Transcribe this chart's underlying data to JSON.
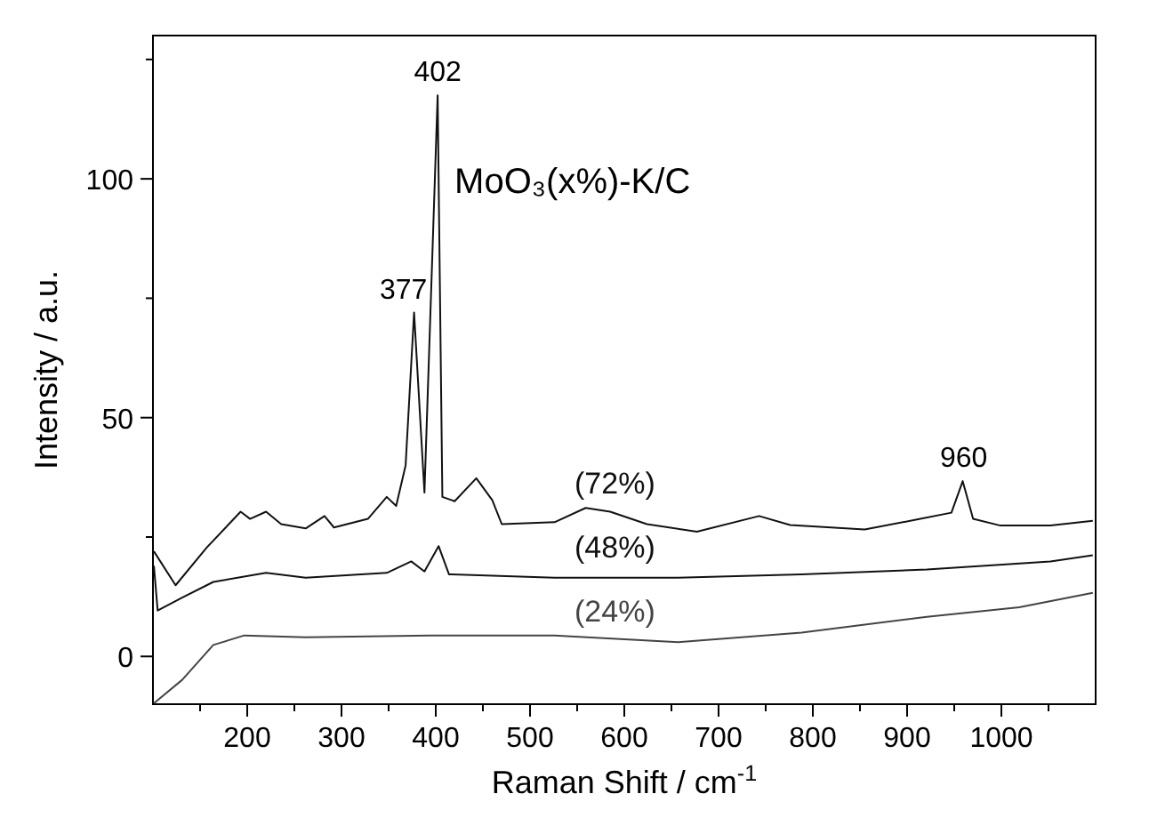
{
  "chart_data": {
    "type": "line",
    "xlabel": "Raman Shift / cm$^{-1}$",
    "ylabel": "Intensity / a.u.",
    "xlim": [
      100,
      1100
    ],
    "ylim": [
      -10,
      130
    ],
    "xticks": [
      {
        "value": 150,
        "label": null
      },
      200,
      {
        "value": 250,
        "label": null
      },
      300,
      {
        "value": 350,
        "label": null
      },
      400,
      {
        "value": 450,
        "label": null
      },
      500,
      {
        "value": 550,
        "label": null
      },
      600,
      {
        "value": 650,
        "label": null
      },
      700,
      {
        "value": 750,
        "label": null
      },
      800,
      {
        "value": 850,
        "label": null
      },
      900,
      {
        "value": 950,
        "label": null
      },
      1000,
      {
        "value": 1050,
        "label": null
      }
    ],
    "yticks": [
      0,
      {
        "value": 25,
        "label": null
      },
      50,
      {
        "value": 75,
        "label": null
      },
      100,
      {
        "value": 125,
        "label": null
      }
    ],
    "grid": false,
    "marker": "none",
    "line_style": "solid",
    "annotations": [
      "MoO₃(x%)-K/C",
      {
        "text": "377",
        "x": 377,
        "y": 72
      },
      {
        "text": "402",
        "x": 402,
        "y": 117.5
      },
      {
        "text": "960",
        "x": 960,
        "y": 36.7
      }
    ],
    "series": [
      {
        "name": "(72%)",
        "color": "#111111",
        "x": [
          101,
          124,
          157,
          193,
          203,
          220,
          236,
          262,
          282,
          292,
          328,
          348,
          358,
          368,
          377,
          388,
          402,
          407,
          420,
          443,
          460,
          470,
          526,
          559,
          585,
          624,
          677,
          743,
          776,
          855,
          914,
          947,
          959,
          970,
          999,
          1052,
          1097
        ],
        "values": [
          22,
          14.9,
          22.8,
          30.3,
          28.8,
          30.3,
          27.7,
          26.8,
          29.4,
          27,
          28.8,
          33.4,
          31.5,
          40,
          72,
          34.3,
          117.5,
          33.4,
          32.5,
          37.3,
          32.7,
          27.7,
          28.1,
          31.1,
          30.3,
          27.7,
          26.1,
          29.4,
          27.5,
          26.6,
          28.8,
          30.1,
          36.7,
          28.8,
          27.4,
          27.4,
          28.4
        ]
      },
      {
        "name": "(48%)",
        "color": "#111111",
        "x": [
          101,
          105,
          131,
          164,
          220,
          262,
          348,
          374,
          388,
          403,
          414,
          526,
          657,
          788,
          921,
          1052,
          1097
        ],
        "values": [
          19,
          9.6,
          12.3,
          15.6,
          17.5,
          16.5,
          17.5,
          19.9,
          17.8,
          23.1,
          17.2,
          16.5,
          16.5,
          17.2,
          18.2,
          19.9,
          21.2
        ]
      },
      {
        "name": "(24%)",
        "color": "#444444",
        "x": [
          101,
          131,
          164,
          197,
          262,
          394,
          526,
          657,
          788,
          921,
          1019,
          1097
        ],
        "values": [
          -9.8,
          -4.9,
          2.4,
          4.4,
          4,
          4.4,
          4.4,
          3,
          5,
          8.3,
          10.3,
          13.3
        ]
      }
    ]
  }
}
